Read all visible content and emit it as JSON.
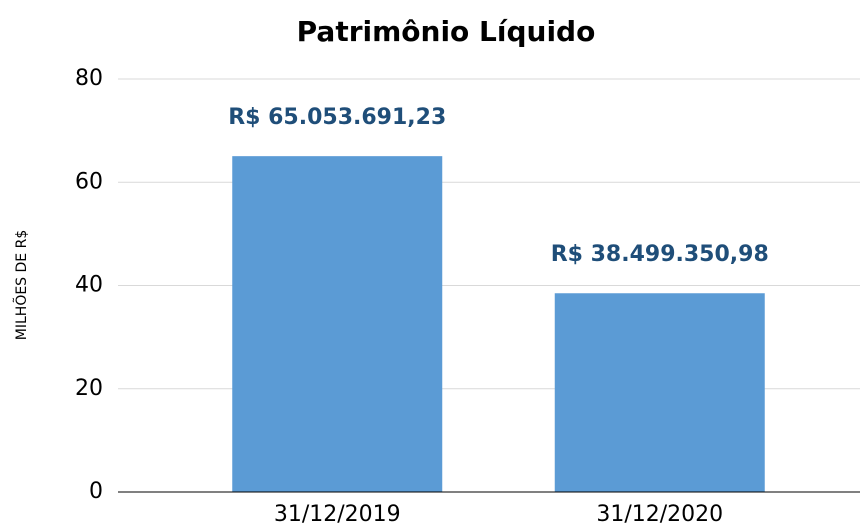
{
  "chart_data": {
    "type": "bar",
    "title": "Patrimônio Líquido",
    "y_label": "MILHÕES DE R$",
    "categories": [
      "31/12/2019",
      "31/12/2020"
    ],
    "values": [
      65.05369123,
      38.49935098
    ],
    "value_labels": [
      "R$ 65.053.691,23",
      "R$ 38.499.350,98"
    ],
    "color": "#5b9bd5",
    "ylim": [
      0,
      80
    ],
    "yticks": [
      0,
      20,
      40,
      60,
      80
    ],
    "grid": true
  }
}
